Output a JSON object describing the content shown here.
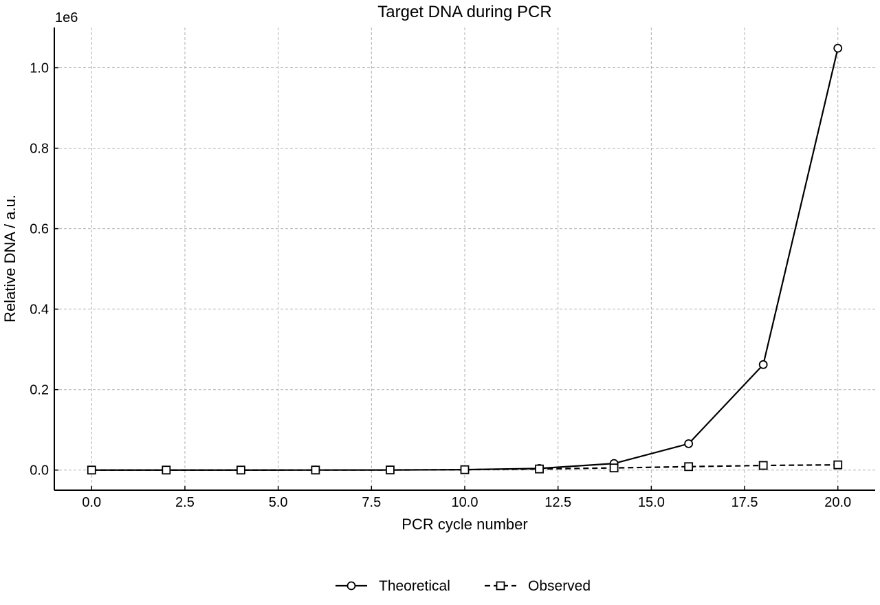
{
  "chart_data": {
    "type": "line",
    "title": "Target DNA during PCR",
    "xlabel": "PCR cycle number",
    "ylabel": "Relative DNA / a.u.",
    "y_scale_label": "1e6",
    "xlim": [
      -1.0,
      21.0
    ],
    "ylim": [
      -50000,
      1100000
    ],
    "x_ticks": [
      0.0,
      2.5,
      5.0,
      7.5,
      10.0,
      12.5,
      15.0,
      17.5,
      20.0
    ],
    "x_tick_labels": [
      "0.0",
      "2.5",
      "5.0",
      "7.5",
      "10.0",
      "12.5",
      "15.0",
      "17.5",
      "20.0"
    ],
    "y_ticks": [
      0,
      200000,
      400000,
      600000,
      800000,
      1000000
    ],
    "y_tick_labels": [
      "0.0",
      "0.2",
      "0.4",
      "0.6",
      "0.8",
      "1.0"
    ],
    "grid": true,
    "legend_position": "bottom-center",
    "x": [
      0,
      2,
      4,
      6,
      8,
      10,
      12,
      14,
      16,
      18,
      20
    ],
    "series": [
      {
        "name": "Theoretical",
        "line_style": "solid",
        "marker": "circle",
        "color": "#000000",
        "values": [
          1,
          4,
          16,
          64,
          256,
          1024,
          4096,
          16384,
          65536,
          262144,
          1048576
        ]
      },
      {
        "name": "Observed",
        "line_style": "dashed",
        "marker": "square",
        "color": "#000000",
        "values": [
          1,
          4,
          16,
          64,
          250,
          950,
          2700,
          5300,
          8500,
          11500,
          13000
        ]
      }
    ]
  }
}
